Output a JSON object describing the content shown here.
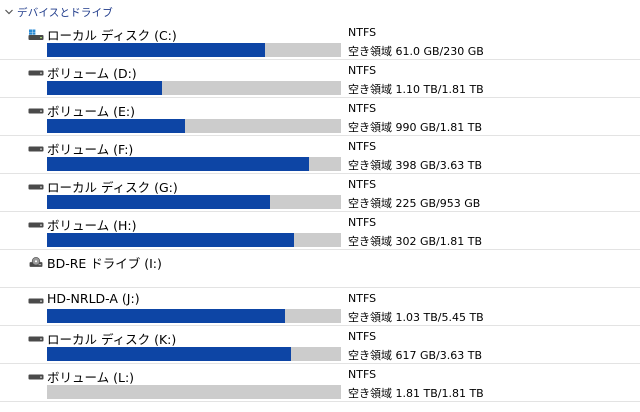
{
  "section": {
    "title": "デバイスとドライブ",
    "chevron_icon": "chevron-down-icon"
  },
  "colors": {
    "bar_fill": "#0d45a5",
    "bar_track": "#cccccc",
    "section_title": "#1e3a8a"
  },
  "drives": [
    {
      "name": "ローカル ディスク (C:)",
      "icon": "windows-drive-icon",
      "fs": "NTFS",
      "free": "空き領域 61.0 GB/230 GB",
      "used_fraction": 0.74
    },
    {
      "name": "ボリューム (D:)",
      "icon": "drive-icon",
      "fs": "NTFS",
      "free": "空き領域 1.10 TB/1.81 TB",
      "used_fraction": 0.39
    },
    {
      "name": "ボリューム (E:)",
      "icon": "drive-icon",
      "fs": "NTFS",
      "free": "空き領域 990 GB/1.81 TB",
      "used_fraction": 0.47
    },
    {
      "name": "ボリューム (F:)",
      "icon": "drive-icon",
      "fs": "NTFS",
      "free": "空き領域 398 GB/3.63 TB",
      "used_fraction": 0.89
    },
    {
      "name": "ローカル ディスク (G:)",
      "icon": "drive-icon",
      "fs": "NTFS",
      "free": "空き領域 225 GB/953 GB",
      "used_fraction": 0.76
    },
    {
      "name": "ボリューム (H:)",
      "icon": "drive-icon",
      "fs": "NTFS",
      "free": "空き領域 302 GB/1.81 TB",
      "used_fraction": 0.84
    },
    {
      "name": "BD-RE ドライブ (I:)",
      "icon": "optical-drive-icon",
      "fs": "",
      "free": "",
      "used_fraction": null
    },
    {
      "name": "HD-NRLD-A (J:)",
      "icon": "drive-icon",
      "fs": "NTFS",
      "free": "空き領域 1.03 TB/5.45 TB",
      "used_fraction": 0.81
    },
    {
      "name": "ローカル ディスク (K:)",
      "icon": "drive-icon",
      "fs": "NTFS",
      "free": "空き領域 617 GB/3.63 TB",
      "used_fraction": 0.83
    },
    {
      "name": "ボリューム (L:)",
      "icon": "drive-icon",
      "fs": "NTFS",
      "free": "空き領域 1.81 TB/1.81 TB",
      "used_fraction": 0.0
    }
  ]
}
